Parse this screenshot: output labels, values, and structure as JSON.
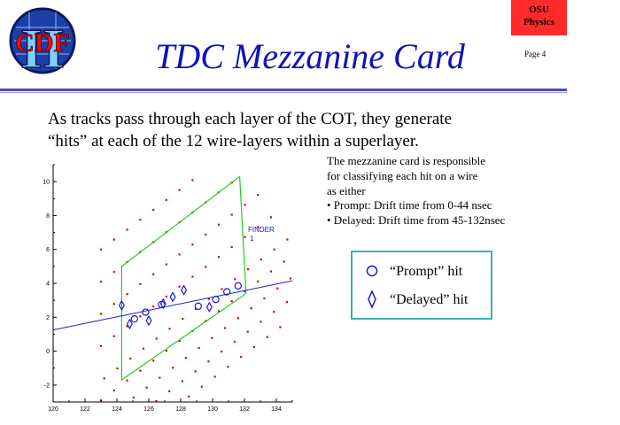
{
  "header": {
    "title": "TDC Mezzanine Card",
    "badge_line1": "OSU",
    "badge_line2": "Physics",
    "page_label": "Page 4",
    "logo_letters": "CDF",
    "logo_numeral": "II",
    "colors": {
      "title": "#1212b8",
      "badge": "#ff2a2a",
      "rule": "#4a4ac8"
    }
  },
  "intro": {
    "line1": "As tracks pass through each layer of the COT, they generate",
    "line2": "“hits” at each of the 12 wire-layers within a superlayer."
  },
  "description": {
    "line1": "The mezzanine card is responsible",
    "line2": "for classifying each hit on a wire",
    "line3": "as either",
    "line4": "• Prompt: Drift time  from 0-44 nsec",
    "line5": "• Delayed: Drift time from 45-132nsec"
  },
  "legend": {
    "prompt": {
      "label": "“Prompt” hit",
      "icon": "circle-icon"
    },
    "delayed": {
      "label": "“Delayed” hit",
      "icon": "diamond-icon"
    }
  },
  "chart_data": {
    "type": "scatter",
    "annotation_line1": "FINDER",
    "annotation_line2": "1",
    "xlim": [
      120,
      135
    ],
    "ylim": [
      -3,
      11
    ],
    "x_ticks": [
      "120",
      "122",
      "124",
      "126",
      "128",
      "130",
      "132",
      "134"
    ],
    "y_ticks": [
      "-2",
      "0",
      "2",
      "4",
      "6",
      "8",
      "10"
    ],
    "finder_region": [
      [
        124.3,
        5.0
      ],
      [
        131.7,
        10.3
      ],
      [
        132.1,
        3.4
      ],
      [
        124.3,
        -1.7
      ]
    ],
    "track_line": [
      [
        120,
        1.25
      ],
      [
        135,
        4.15
      ]
    ],
    "prompt_hits": [
      [
        125.1,
        1.9
      ],
      [
        125.8,
        2.3
      ],
      [
        126.8,
        2.75
      ],
      [
        129.1,
        2.65
      ],
      [
        130.2,
        3.05
      ],
      [
        130.9,
        3.5
      ],
      [
        131.6,
        3.85
      ]
    ],
    "delayed_hits": [
      [
        124.3,
        2.7
      ],
      [
        124.8,
        1.6
      ],
      [
        126.0,
        1.8
      ],
      [
        126.9,
        2.8
      ],
      [
        127.5,
        3.2
      ],
      [
        128.2,
        3.6
      ],
      [
        129.8,
        2.6
      ]
    ],
    "wire_rows": [
      {
        "x0": 123.0,
        "y0": 0.3,
        "dx": 0.82,
        "dy": 0.585,
        "n": 14
      },
      {
        "x0": 123.2,
        "y0": -1.6,
        "dx": 0.82,
        "dy": 0.585,
        "n": 15
      },
      {
        "x0": 123.0,
        "y0": -2.9,
        "dx": 0.82,
        "dy": 0.585,
        "n": 16
      },
      {
        "x0": 123.4,
        "y0": -3.9,
        "dx": 0.82,
        "dy": 0.585,
        "n": 16
      },
      {
        "x0": 124.0,
        "y0": -4.7,
        "dx": 0.82,
        "dy": 0.585,
        "n": 16
      },
      {
        "x0": 124.4,
        "y0": -5.6,
        "dx": 0.82,
        "dy": 0.585,
        "n": 16
      },
      {
        "x0": 123.0,
        "y0": 2.2,
        "dx": 0.82,
        "dy": 0.585,
        "n": 13
      },
      {
        "x0": 123.0,
        "y0": 4.1,
        "dx": 0.82,
        "dy": 0.585,
        "n": 11
      },
      {
        "x0": 123.0,
        "y0": 6.0,
        "dx": 0.82,
        "dy": 0.585,
        "n": 8
      }
    ],
    "colors": {
      "wire": "#e00000",
      "region": "#22cc22",
      "track": "#1a1ad0",
      "hit": "#1a1ad0",
      "annotation": "#1a1ad0"
    }
  }
}
